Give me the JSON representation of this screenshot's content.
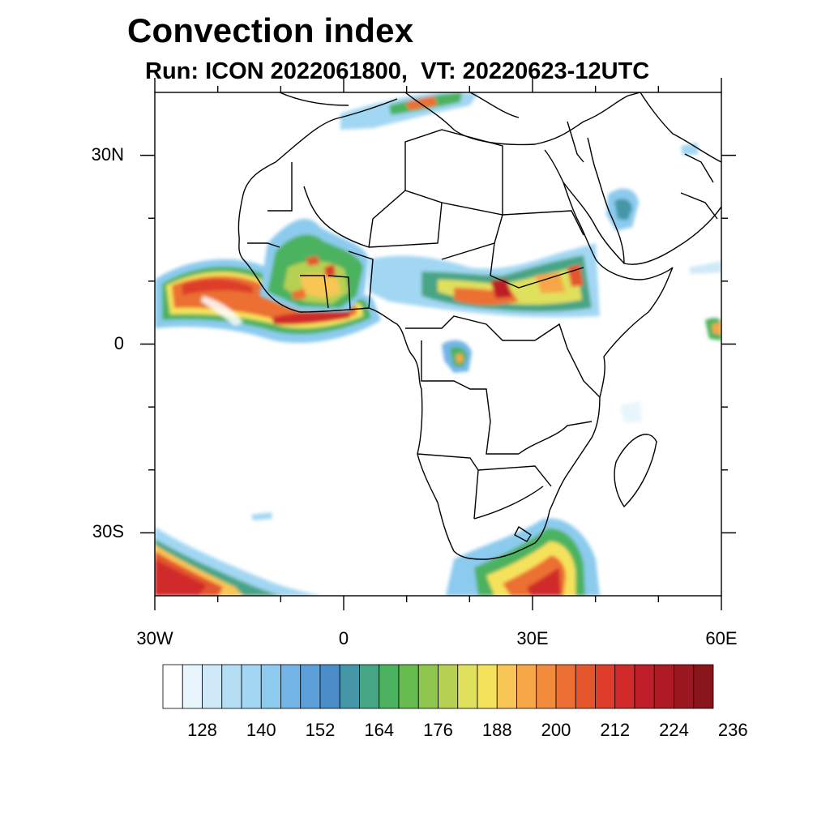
{
  "title": "Convection index",
  "subtitle": "Run: ICON 2022061800,  VT: 20220623-12UTC",
  "map": {
    "lon_range": [
      -30,
      60
    ],
    "lat_range": [
      -40,
      40
    ],
    "y_ticks": [
      {
        "lat": 30,
        "label": "30N"
      },
      {
        "lat": 0,
        "label": "0"
      },
      {
        "lat": -30,
        "label": "30S"
      }
    ],
    "x_ticks": [
      {
        "lon": -30,
        "label": "30W"
      },
      {
        "lon": 0,
        "label": "0"
      },
      {
        "lon": 30,
        "label": "30E"
      },
      {
        "lon": 60,
        "label": "60E"
      }
    ]
  },
  "colorbar": {
    "colors": [
      "#ffffff",
      "#e8f5fc",
      "#cfe9f8",
      "#b5def5",
      "#a2d7f3",
      "#8ccbee",
      "#73b5e6",
      "#5c9fd9",
      "#4b8dc9",
      "#4597a8",
      "#46a585",
      "#4bb25f",
      "#66bc4e",
      "#8fc64d",
      "#b6d052",
      "#dfe05c",
      "#f5e25c",
      "#f8c655",
      "#f7a746",
      "#f18c3c",
      "#ec6f33",
      "#e5562d",
      "#dd3d2a",
      "#d02a2a",
      "#bf1f28",
      "#ad1a24",
      "#9a1820",
      "#881519"
    ],
    "labels": [
      "128",
      "140",
      "152",
      "164",
      "176",
      "188",
      "200",
      "212",
      "224",
      "236"
    ]
  }
}
